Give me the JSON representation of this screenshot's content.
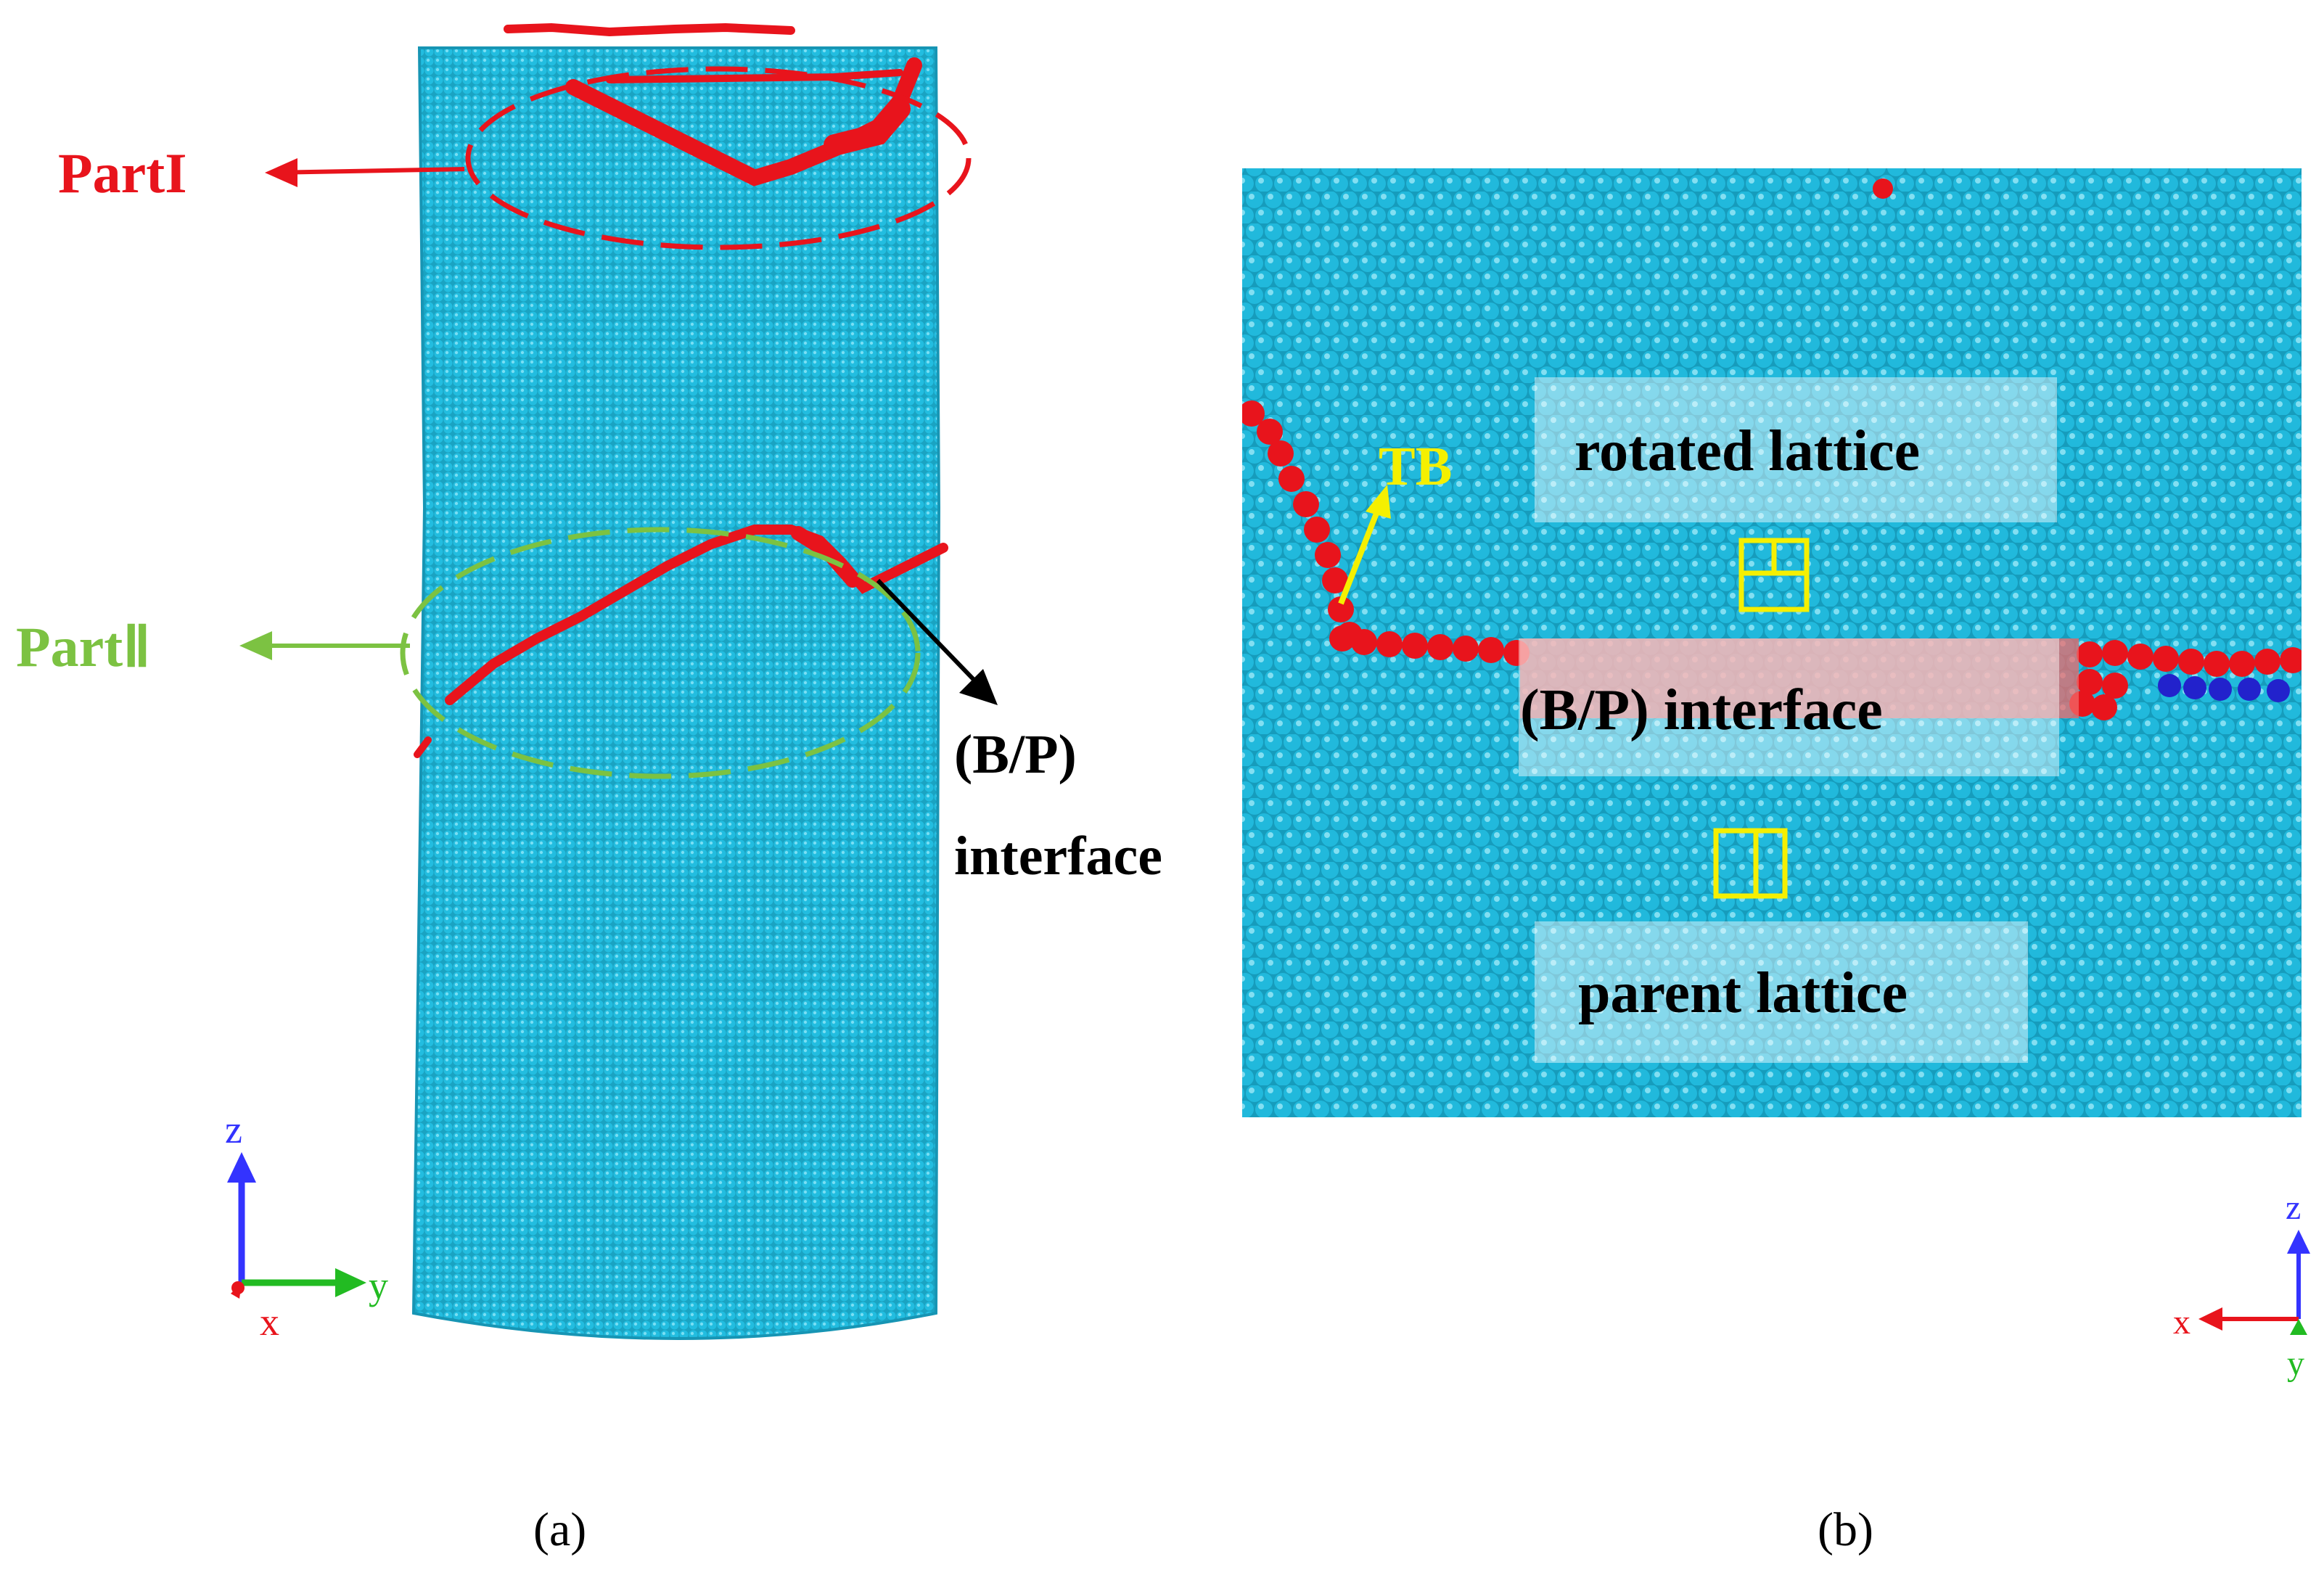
{
  "panel_a": {
    "part1_label": "PartI",
    "part2_label": "PartⅡ",
    "interface_label_line1": "(B/P)",
    "interface_label_line2": "interface",
    "caption": "(a)",
    "axes": {
      "z": "z",
      "y": "y",
      "x": "x"
    }
  },
  "panel_b": {
    "rotated_label": "rotated lattice",
    "interface_label": "(B/P) interface",
    "parent_label": "parent lattice",
    "tb_label": "TB",
    "caption": "(b)",
    "axes": {
      "z": "z",
      "x": "x",
      "y": "y"
    }
  },
  "colors": {
    "atom_fcc": "#1fb7d6",
    "atom_boundary": "#e8141c",
    "atom_other": "#2222cc",
    "part1": "#e8141c",
    "part2": "#7cc242",
    "tb": "#f5f000",
    "axis_z": "#3333ff",
    "axis_y": "#22bb22",
    "axis_x": "#e8141c"
  }
}
